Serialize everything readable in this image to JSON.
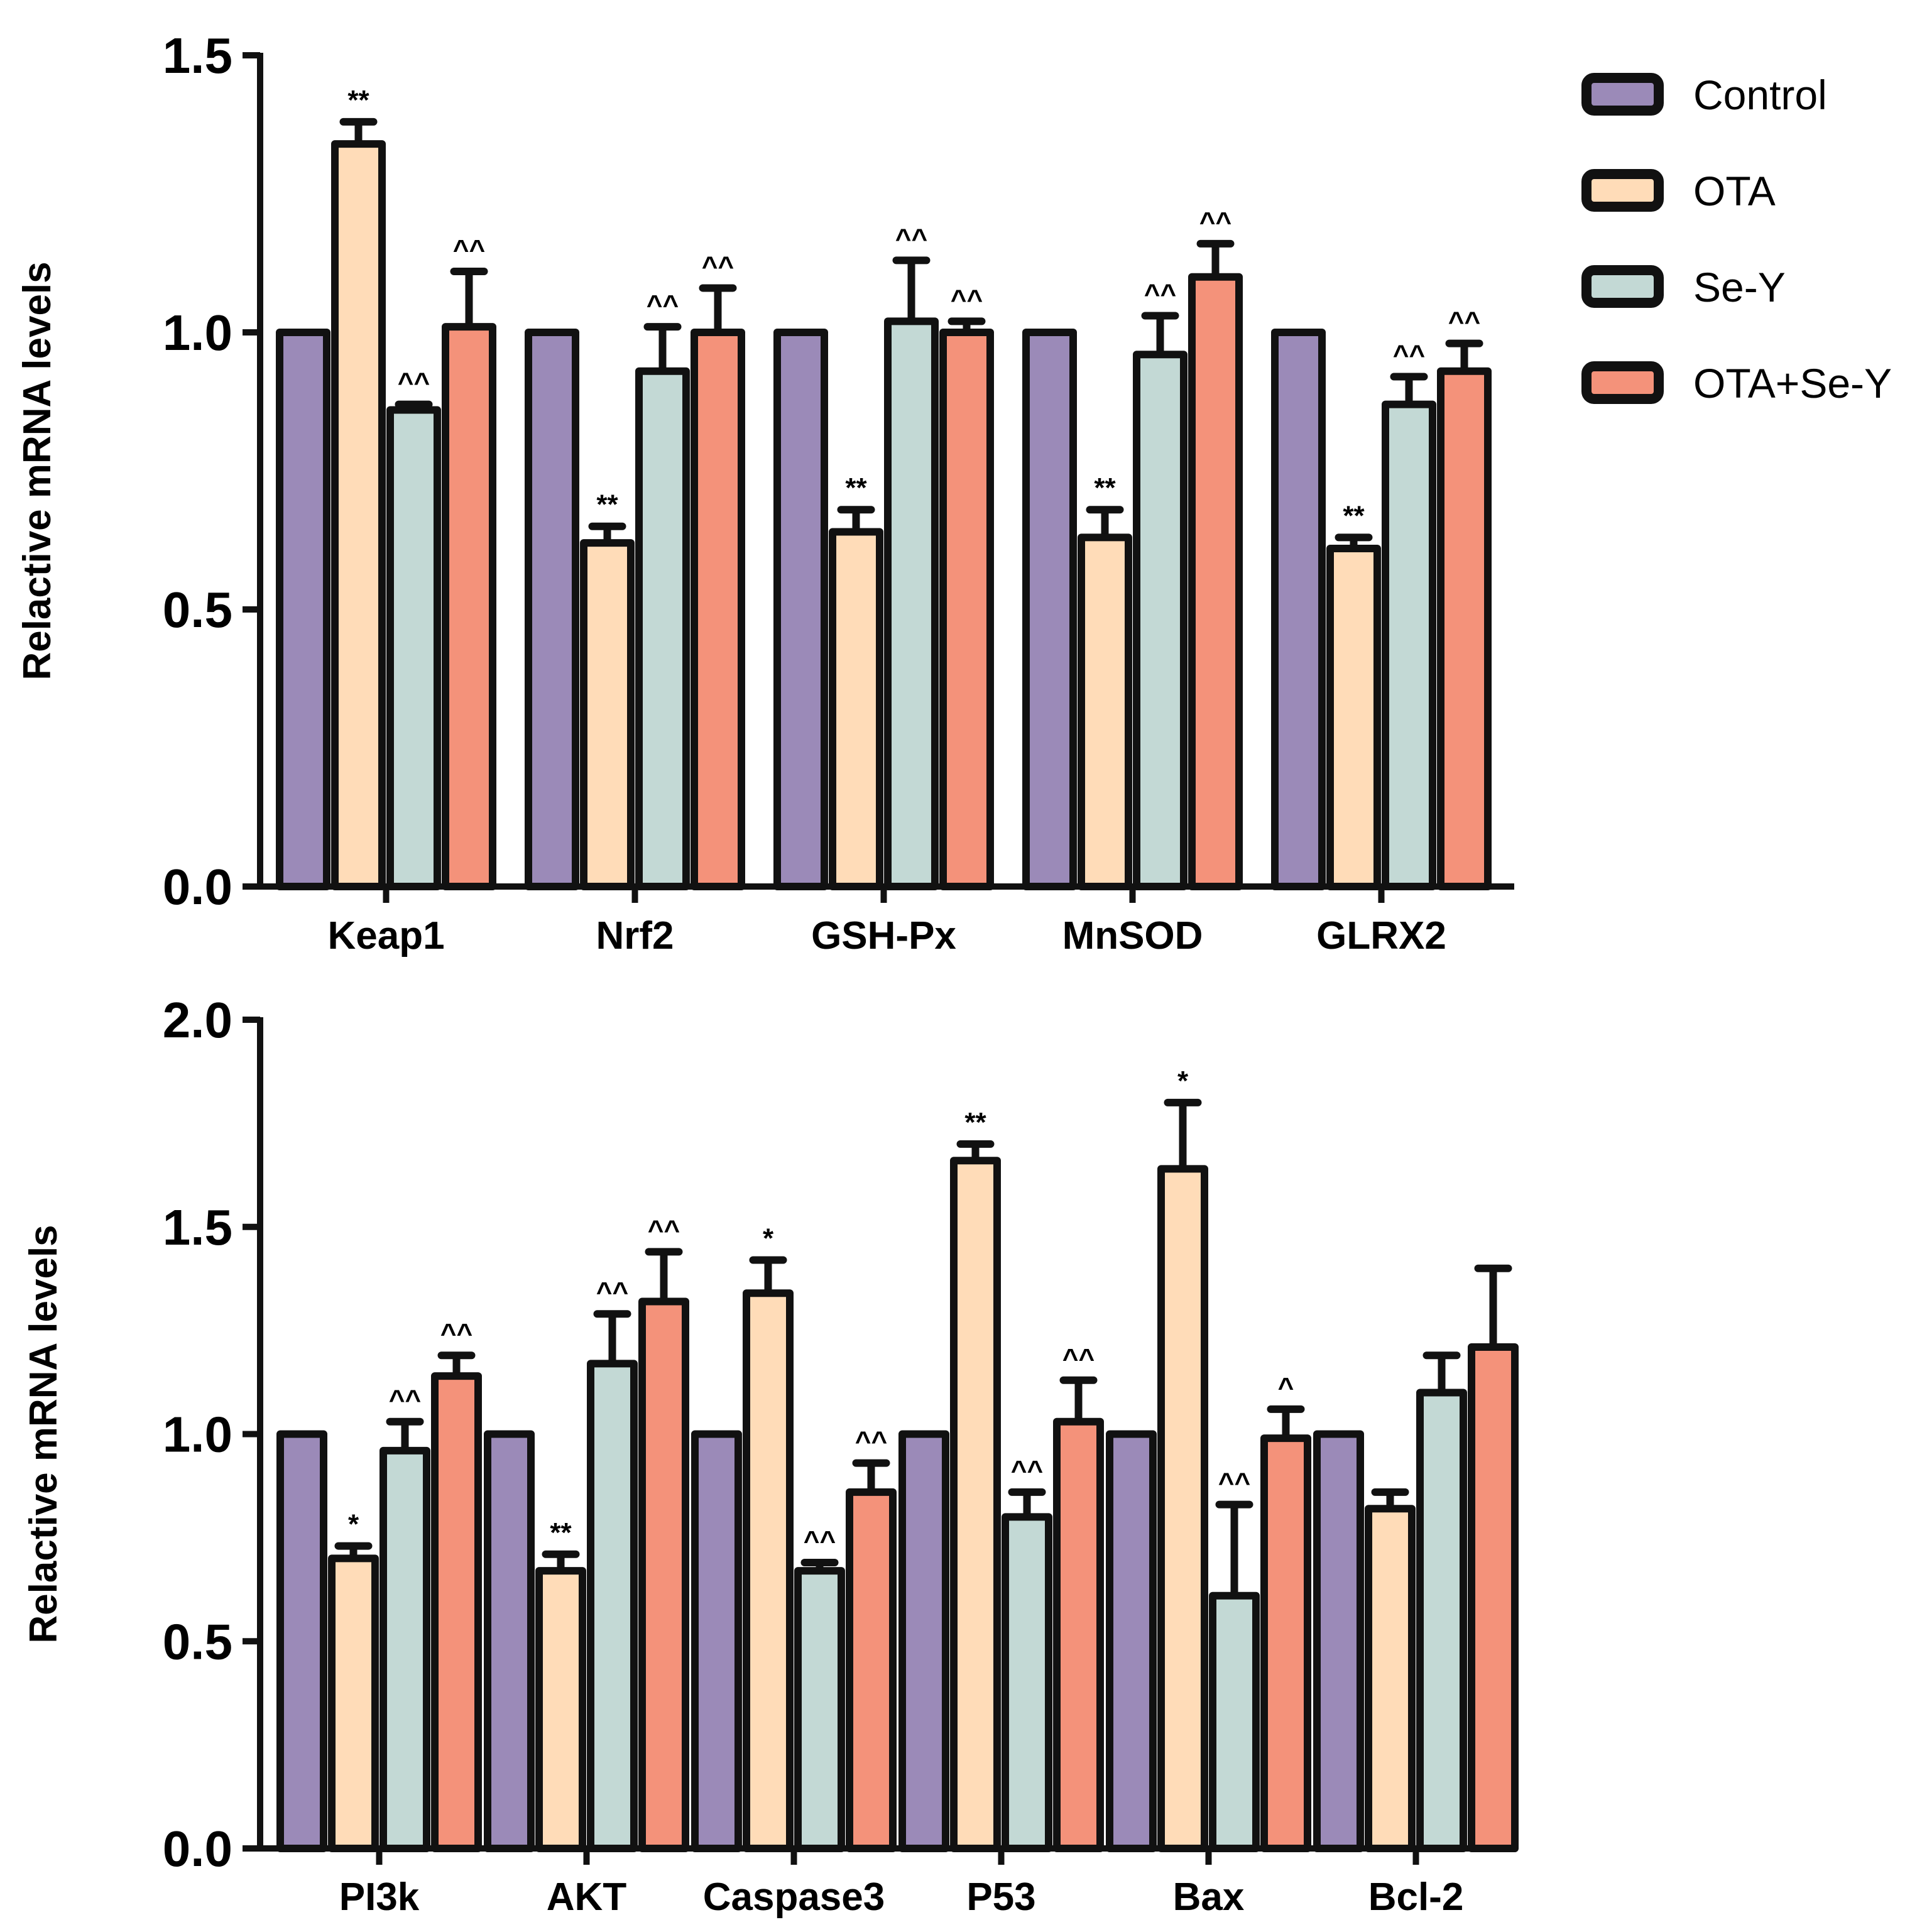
{
  "legend": {
    "items": [
      {
        "label": "Control",
        "color": "#9b8ab8"
      },
      {
        "label": "OTA",
        "color": "#ffdcb8"
      },
      {
        "label": "Se-Y",
        "color": "#c3d9d5"
      },
      {
        "label": "OTA+Se-Y",
        "color": "#f4927a"
      }
    ]
  },
  "chart_data": [
    {
      "type": "bar",
      "ylabel": "Relactive mRNA levels",
      "ylim": [
        0,
        1.5
      ],
      "yticks": [
        "0.0",
        "0.5",
        "1.0",
        "1.5"
      ],
      "categories": [
        "Keap1",
        "Nrf2",
        "GSH-Px",
        "MnSOD",
        "GLRX2"
      ],
      "series": [
        {
          "name": "Control",
          "values": [
            1.0,
            1.0,
            1.0,
            1.0,
            1.0
          ],
          "errors": [
            0,
            0,
            0,
            0,
            0
          ],
          "annotations": [
            "",
            "",
            "",
            "",
            ""
          ]
        },
        {
          "name": "OTA",
          "values": [
            1.34,
            0.62,
            0.64,
            0.63,
            0.61
          ],
          "errors": [
            0.04,
            0.03,
            0.04,
            0.05,
            0.02
          ],
          "annotations": [
            "**",
            "**",
            "**",
            "**",
            "**"
          ]
        },
        {
          "name": "Se-Y",
          "values": [
            0.86,
            0.93,
            1.02,
            0.96,
            0.87
          ],
          "errors": [
            0.01,
            0.08,
            0.11,
            0.07,
            0.05
          ],
          "annotations": [
            "^^",
            "^^",
            "^^",
            "^^",
            "^^"
          ]
        },
        {
          "name": "OTA+Se-Y",
          "values": [
            1.01,
            1.0,
            1.0,
            1.1,
            0.93
          ],
          "errors": [
            0.1,
            0.08,
            0.02,
            0.06,
            0.05
          ],
          "annotations": [
            "^^",
            "^^",
            "^^",
            "^^",
            "^^"
          ]
        }
      ]
    },
    {
      "type": "bar",
      "ylabel": "Relactive mRNA levels",
      "ylim": [
        0,
        2.0
      ],
      "yticks": [
        "0.0",
        "0.5",
        "1.0",
        "1.5",
        "2.0"
      ],
      "categories": [
        "PI3k",
        "AKT",
        "Caspase3",
        "P53",
        "Bax",
        "Bcl-2"
      ],
      "series": [
        {
          "name": "Control",
          "values": [
            1.0,
            1.0,
            1.0,
            1.0,
            1.0,
            1.0
          ],
          "errors": [
            0,
            0,
            0,
            0,
            0,
            0
          ],
          "annotations": [
            "",
            "",
            "",
            "",
            "",
            ""
          ]
        },
        {
          "name": "OTA",
          "values": [
            0.7,
            0.67,
            1.34,
            1.66,
            1.64,
            0.82
          ],
          "errors": [
            0.03,
            0.04,
            0.08,
            0.04,
            0.16,
            0.04
          ],
          "annotations": [
            "*",
            "**",
            "*",
            "**",
            "*",
            ""
          ]
        },
        {
          "name": "Se-Y",
          "values": [
            0.96,
            1.17,
            0.67,
            0.8,
            0.61,
            1.1
          ],
          "errors": [
            0.07,
            0.12,
            0.02,
            0.06,
            0.22,
            0.09
          ],
          "annotations": [
            "^^",
            "^^",
            "^^",
            "^^",
            "^^",
            ""
          ]
        },
        {
          "name": "OTA+Se-Y",
          "values": [
            1.14,
            1.32,
            0.86,
            1.03,
            0.99,
            1.21
          ],
          "errors": [
            0.05,
            0.12,
            0.07,
            0.1,
            0.07,
            0.19
          ],
          "annotations": [
            "^^",
            "^^",
            "^^",
            "^^",
            "^",
            ""
          ]
        }
      ]
    }
  ]
}
